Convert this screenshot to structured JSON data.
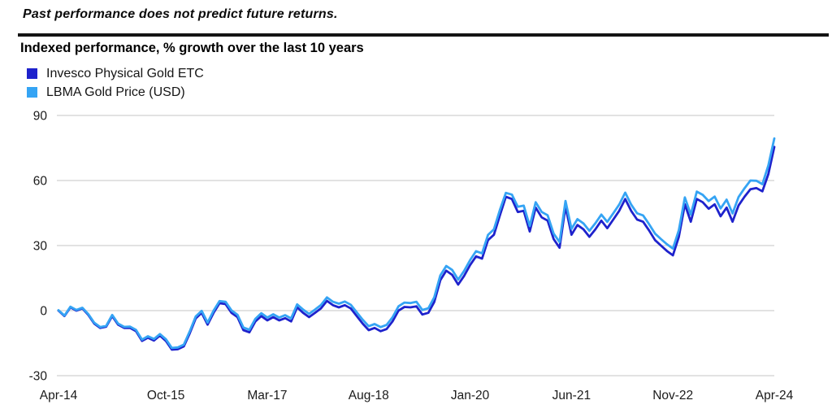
{
  "header": {
    "disclaimer": "Past performance does not predict future returns.",
    "subtitle": "Indexed performance, % growth over the last 10 years"
  },
  "colors": {
    "rule": "#141414",
    "gridline": "#d8d8d8",
    "invesco_blue": "#1e22cc",
    "lbma_blue": "#35a4f4"
  },
  "chart_data": {
    "type": "line",
    "title": "Indexed performance, % growth over the last 10 years",
    "xlabel": "",
    "ylabel": "% growth",
    "x_unit": "months since Apr-2014",
    "xlim": [
      0,
      120
    ],
    "ylim": [
      -30,
      90
    ],
    "grid": "horizontal",
    "legend_position": "top-left",
    "y_ticks": [
      90,
      60,
      30,
      0,
      -30
    ],
    "x_tick_positions": [
      0,
      18,
      35,
      52,
      69,
      86,
      103,
      120
    ],
    "x_tick_labels": [
      "Apr-14",
      "Oct-15",
      "Mar-17",
      "Aug-18",
      "Jan-20",
      "Jun-21",
      "Nov-22",
      "Apr-24"
    ],
    "series": [
      {
        "name": "Invesco Physical Gold ETC",
        "color": "#1e22cc",
        "values": [
          0,
          -2.5,
          1.5,
          0,
          1,
          -2,
          -6,
          -8,
          -7.4,
          -2.5,
          -6.5,
          -8,
          -8,
          -9.5,
          -14,
          -12.5,
          -13.8,
          -11.5,
          -14,
          -18,
          -17.8,
          -16.5,
          -10.5,
          -3.6,
          -1,
          -6.5,
          -1,
          3.4,
          3,
          -1,
          -3,
          -9,
          -10,
          -5,
          -2.5,
          -4.5,
          -3,
          -4.5,
          -3.5,
          -5,
          1.5,
          -1,
          -3,
          -1,
          1,
          4.5,
          2.5,
          1.5,
          2.5,
          1,
          -2.5,
          -6,
          -9,
          -8,
          -9.5,
          -8.5,
          -5,
          0,
          1.7,
          1.5,
          2,
          -1.8,
          -1,
          4,
          14,
          18.4,
          16.5,
          12,
          16,
          21,
          25,
          24,
          32.5,
          35,
          44,
          52.5,
          51.5,
          45.5,
          46,
          36.5,
          47.5,
          43,
          41.5,
          33,
          29,
          48,
          35,
          39.5,
          37.5,
          34,
          37.5,
          41.5,
          38,
          42,
          46,
          51.5,
          46,
          42,
          41,
          37,
          32.5,
          30,
          27.5,
          25.5,
          34,
          49,
          41,
          51.5,
          50,
          47,
          49,
          43.5,
          47.5,
          41,
          48.5,
          52.5,
          56,
          56.5,
          55,
          63,
          75.5
        ]
      },
      {
        "name": "LBMA Gold Price (USD)",
        "color": "#35a4f4",
        "values": [
          0.2,
          -2.3,
          1.8,
          0.3,
          1.3,
          -1.6,
          -5.6,
          -7.6,
          -7.0,
          -2.0,
          -6.0,
          -7.5,
          -7.4,
          -8.9,
          -13.4,
          -11.8,
          -13.1,
          -10.8,
          -13.2,
          -17.2,
          -17.0,
          -15.7,
          -9.6,
          -2.7,
          -0.1,
          -5.5,
          0.0,
          4.4,
          4.1,
          0.1,
          -1.9,
          -7.8,
          -8.8,
          -3.8,
          -1.2,
          -3.2,
          -1.7,
          -3.2,
          -2.1,
          -3.6,
          2.9,
          0.5,
          -1.5,
          0.5,
          2.6,
          6.1,
          4.1,
          3.2,
          4.2,
          2.7,
          -0.8,
          -4.2,
          -7.2,
          -6.2,
          -7.6,
          -6.6,
          -3.1,
          2.0,
          3.7,
          3.5,
          4.1,
          0.3,
          1.1,
          6.2,
          16.2,
          20.6,
          18.8,
          14.3,
          18.3,
          23.3,
          27.4,
          26.4,
          34.9,
          37.5,
          46.5,
          54.3,
          53.5,
          47.9,
          48.4,
          39.0,
          50.0,
          45.5,
          44.0,
          35.5,
          31.6,
          50.6,
          37.7,
          42.2,
          40.2,
          36.8,
          40.3,
          44.3,
          40.9,
          44.9,
          48.9,
          54.4,
          48.9,
          44.9,
          43.9,
          39.9,
          35.5,
          33.0,
          30.6,
          28.6,
          37.1,
          52.2,
          44.3,
          54.9,
          53.4,
          50.5,
          52.6,
          47.1,
          51.2,
          44.8,
          52.4,
          56.4,
          60.0,
          59.9,
          58.3,
          67.0,
          79.4
        ]
      }
    ]
  }
}
